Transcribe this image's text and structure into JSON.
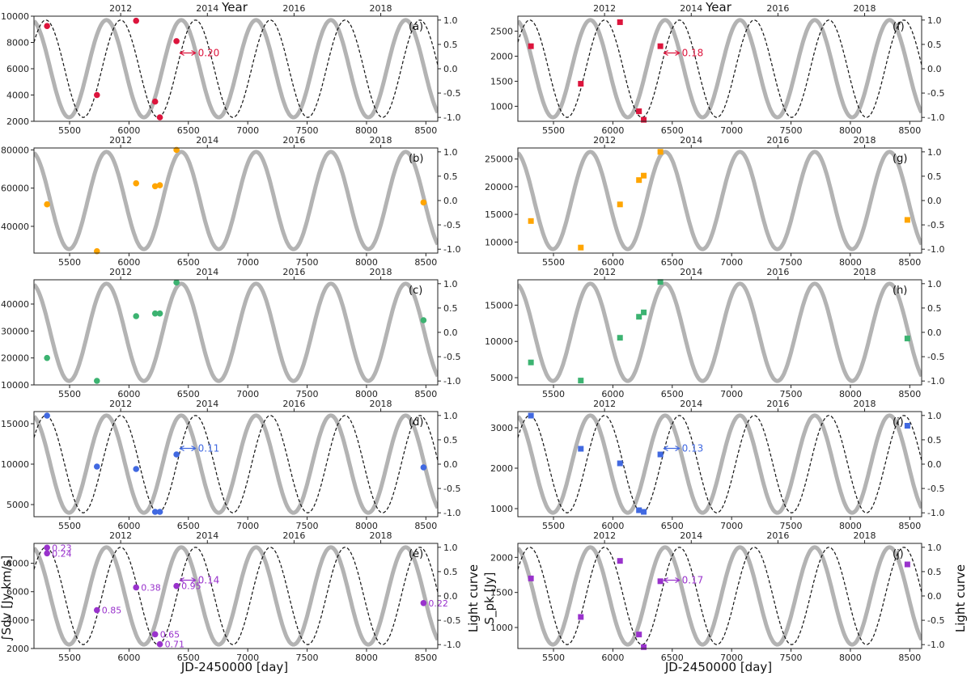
{
  "figure": {
    "top_axis_title": "Year",
    "x_axis_title": "JD-2450000 [day]",
    "y_left_title_left": "∫Sdv [Jy km/s]",
    "y_left_title_right": "S_pk [Jy]",
    "y_right_title": "Light curve"
  },
  "chart_data": [
    {
      "id": "a",
      "label": "(a)",
      "type": "scatter",
      "color": "#dc143c",
      "marker": "circle",
      "xlim": [
        5200,
        8600
      ],
      "ylim": [
        2000,
        10000
      ],
      "yticks": [
        2000,
        4000,
        6000,
        8000,
        10000
      ],
      "yticklabels": [
        "2000",
        "4000",
        "6000",
        "8000",
        "10000"
      ],
      "x": [
        5310,
        5730,
        6060,
        6220,
        6260,
        6400
      ],
      "y": [
        9250,
        4000,
        9650,
        3500,
        2300,
        8100
      ],
      "shifted_curve": true,
      "shift_label": "0.20"
    },
    {
      "id": "b",
      "label": "(b)",
      "type": "scatter",
      "color": "#ffa500",
      "marker": "circle",
      "xlim": [
        5200,
        8600
      ],
      "ylim": [
        26000,
        81000
      ],
      "yticks": [
        40000,
        60000,
        80000
      ],
      "yticklabels": [
        "40000",
        "60000",
        "80000"
      ],
      "x": [
        5310,
        5730,
        6060,
        6220,
        6260,
        6400,
        8480
      ],
      "y": [
        51500,
        27000,
        62500,
        61000,
        61500,
        80000,
        52500
      ],
      "shifted_curve": false
    },
    {
      "id": "c",
      "label": "(c)",
      "type": "scatter",
      "color": "#3cb371",
      "marker": "circle",
      "xlim": [
        5200,
        8600
      ],
      "ylim": [
        10000,
        49000
      ],
      "yticks": [
        10000,
        20000,
        30000,
        40000
      ],
      "yticklabels": [
        "10000",
        "20000",
        "30000",
        "40000"
      ],
      "x": [
        5310,
        5730,
        6060,
        6220,
        6260,
        6400,
        8480
      ],
      "y": [
        20000,
        11500,
        35500,
        36500,
        36500,
        48000,
        34000
      ],
      "shifted_curve": false
    },
    {
      "id": "d",
      "label": "(d)",
      "type": "scatter",
      "color": "#4169e1",
      "marker": "circle",
      "xlim": [
        5200,
        8600
      ],
      "ylim": [
        3500,
        16500
      ],
      "yticks": [
        5000,
        10000,
        15000
      ],
      "yticklabels": [
        "5000",
        "10000",
        "15000"
      ],
      "x": [
        5310,
        5730,
        6060,
        6220,
        6260,
        6400,
        8480
      ],
      "y": [
        16000,
        9700,
        9400,
        4100,
        4100,
        11200,
        9600
      ],
      "shifted_curve": true,
      "shift_label": "0.11"
    },
    {
      "id": "e",
      "label": "(e)",
      "type": "scatter",
      "color": "#9932cc",
      "marker": "circle",
      "xlim": [
        5200,
        8600
      ],
      "ylim": [
        2000,
        9400
      ],
      "yticks": [
        2000,
        4000,
        6000,
        8000
      ],
      "yticklabels": [
        "2000",
        "4000",
        "6000",
        "8000"
      ],
      "x": [
        5310,
        5310,
        5730,
        6060,
        6220,
        6260,
        6400,
        8480
      ],
      "y": [
        9100,
        8700,
        4700,
        6300,
        3000,
        2300,
        6400,
        5200
      ],
      "annotations": [
        "0.23",
        "0.24",
        "0.85",
        "0.38",
        "0.65",
        "0.71",
        "0.95",
        "0.22"
      ],
      "shifted_curve": true,
      "shift_label": "0.14"
    },
    {
      "id": "f",
      "label": "(f)",
      "type": "scatter",
      "color": "#dc143c",
      "marker": "square",
      "xlim": [
        5200,
        8600
      ],
      "ylim": [
        700,
        2800
      ],
      "yticks": [
        1000,
        1500,
        2000,
        2500
      ],
      "yticklabels": [
        "1000",
        "1500",
        "2000",
        "2500"
      ],
      "x": [
        5310,
        5730,
        6060,
        6220,
        6260,
        6400
      ],
      "y": [
        2200,
        1450,
        2680,
        900,
        730,
        2200
      ],
      "shifted_curve": true,
      "shift_label": "0.18"
    },
    {
      "id": "g",
      "label": "(g)",
      "type": "scatter",
      "color": "#ffa500",
      "marker": "square",
      "xlim": [
        5200,
        8600
      ],
      "ylim": [
        8000,
        27000
      ],
      "yticks": [
        10000,
        15000,
        20000,
        25000
      ],
      "yticklabels": [
        "10000",
        "15000",
        "20000",
        "25000"
      ],
      "x": [
        5310,
        5730,
        6060,
        6220,
        6260,
        6400,
        8480
      ],
      "y": [
        13800,
        9000,
        16800,
        21200,
        22000,
        26300,
        14000
      ],
      "shifted_curve": false
    },
    {
      "id": "h",
      "label": "(h)",
      "type": "scatter",
      "color": "#3cb371",
      "marker": "square",
      "xlim": [
        5200,
        8600
      ],
      "ylim": [
        4000,
        18500
      ],
      "yticks": [
        5000,
        10000,
        15000
      ],
      "yticklabels": [
        "5000",
        "10000",
        "15000"
      ],
      "x": [
        5310,
        5730,
        6060,
        6220,
        6260,
        6400,
        8480
      ],
      "y": [
        7100,
        4600,
        10500,
        13400,
        14000,
        18200,
        10400
      ],
      "shifted_curve": false
    },
    {
      "id": "i",
      "label": "(i)",
      "type": "scatter",
      "color": "#4169e1",
      "marker": "square",
      "xlim": [
        5200,
        8600
      ],
      "ylim": [
        800,
        3400
      ],
      "yticks": [
        1000,
        2000,
        3000
      ],
      "yticklabels": [
        "1000",
        "2000",
        "3000"
      ],
      "x": [
        5310,
        5730,
        6060,
        6220,
        6260,
        6400,
        8480
      ],
      "y": [
        3300,
        2480,
        2120,
        960,
        920,
        2340,
        3050
      ],
      "shifted_curve": true,
      "shift_label": "0.13"
    },
    {
      "id": "j",
      "label": "(j)",
      "type": "scatter",
      "color": "#9932cc",
      "marker": "square",
      "xlim": [
        5200,
        8600
      ],
      "ylim": [
        700,
        2200
      ],
      "yticks": [
        1000,
        1500,
        2000
      ],
      "yticklabels": [
        "1000",
        "1500",
        "2000"
      ],
      "x": [
        5310,
        5730,
        6060,
        6220,
        6260,
        6400,
        8480
      ],
      "y": [
        1700,
        1150,
        1950,
        900,
        720,
        1660,
        1900
      ],
      "shifted_curve": true,
      "shift_label": "0.17"
    }
  ],
  "axes": {
    "xticks": [
      5500,
      6000,
      6500,
      7000,
      7500,
      8000,
      8500
    ],
    "xticklabels": [
      "5500",
      "6000",
      "6500",
      "7000",
      "7500",
      "8000",
      "8500"
    ],
    "year_ticks": [
      "2012",
      "2014",
      "2016",
      "2018"
    ],
    "right_yticks": [
      1.0,
      0.5,
      0.0,
      -0.5,
      -1.0
    ],
    "right_yticklabels": [
      "1.0",
      "0.5",
      "0.0",
      "-0.5",
      "-1.0"
    ]
  }
}
